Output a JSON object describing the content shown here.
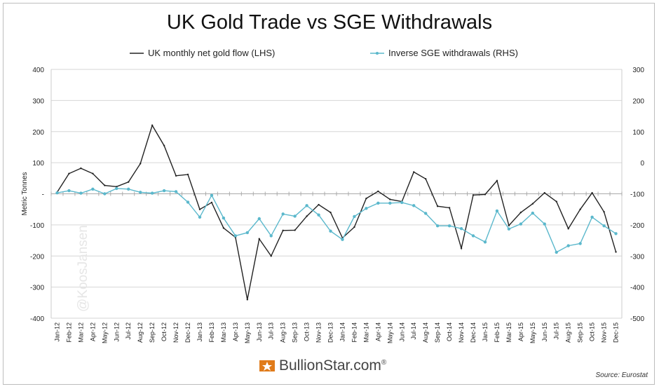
{
  "chart_data": {
    "type": "line",
    "title": "UK Gold Trade vs SGE Withdrawals",
    "ylabel": "Metric Tonnes",
    "ylim_left": [
      -400,
      400
    ],
    "ylim_right": [
      -500,
      300
    ],
    "yticks_left": [
      "400",
      "300",
      "200",
      "100",
      "-",
      "-100",
      "-200",
      "-300",
      "-400"
    ],
    "yticks_right": [
      "300",
      "200",
      "100",
      "0",
      "-100",
      "-200",
      "-300",
      "-400",
      "-500"
    ],
    "grid": true,
    "legend_position": "top",
    "categories": [
      "Jan-12",
      "Feb-12",
      "Mar-12",
      "Apr-12",
      "May-12",
      "Jun-12",
      "Jul-12",
      "Aug-12",
      "Sep-12",
      "Oct-12",
      "Nov-12",
      "Dec-12",
      "Jan-13",
      "Feb-13",
      "Mar-13",
      "Apr-13",
      "May-13",
      "Jun-13",
      "Jul-13",
      "Aug-13",
      "Sep-13",
      "Oct-13",
      "Nov-13",
      "Dec-13",
      "Jan-14",
      "Feb-14",
      "Mar-14",
      "Apr-14",
      "May-14",
      "Jun-14",
      "Jul-14",
      "Aug-14",
      "Sep-14",
      "Oct-14",
      "Nov-14",
      "Dec-14",
      "Jan-15",
      "Feb-15",
      "Mar-15",
      "Apr-15",
      "May-15",
      "Jun-15",
      "Jul-15",
      "Aug-15",
      "Sep-15",
      "Oct-15",
      "Nov-15",
      "Dec-15"
    ],
    "series": [
      {
        "name": "UK monthly net gold flow (LHS)",
        "axis": "left",
        "color": "#222222",
        "values": [
          5,
          65,
          82,
          65,
          27,
          23,
          38,
          97,
          220,
          155,
          58,
          62,
          -50,
          -28,
          -110,
          -140,
          -340,
          -145,
          -200,
          -118,
          -117,
          -72,
          -35,
          -60,
          -142,
          -107,
          -15,
          8,
          -18,
          -25,
          70,
          48,
          -40,
          -45,
          -175,
          -4,
          -2,
          42,
          -102,
          -60,
          -32,
          3,
          -25,
          -112,
          -50,
          3,
          -58,
          -187
        ]
      },
      {
        "name": "Inverse SGE withdrawals (RHS)",
        "axis": "right",
        "color": "#5bb8cc",
        "values": [
          -97,
          -90,
          -98,
          -85,
          -100,
          -83,
          -85,
          -95,
          -98,
          -90,
          -93,
          -127,
          -175,
          -105,
          -178,
          -235,
          -225,
          -180,
          -235,
          -165,
          -172,
          -138,
          -168,
          -220,
          -247,
          -173,
          -147,
          -130,
          -130,
          -128,
          -138,
          -163,
          -203,
          -203,
          -212,
          -235,
          -255,
          -155,
          -213,
          -197,
          -162,
          -197,
          -288,
          -267,
          -260,
          -175,
          -203,
          -228
        ]
      }
    ]
  },
  "watermark": "@KoosJansen",
  "logo": {
    "text": "BullionStar.com",
    "mark": "®"
  },
  "source": "Source: Eurostat"
}
